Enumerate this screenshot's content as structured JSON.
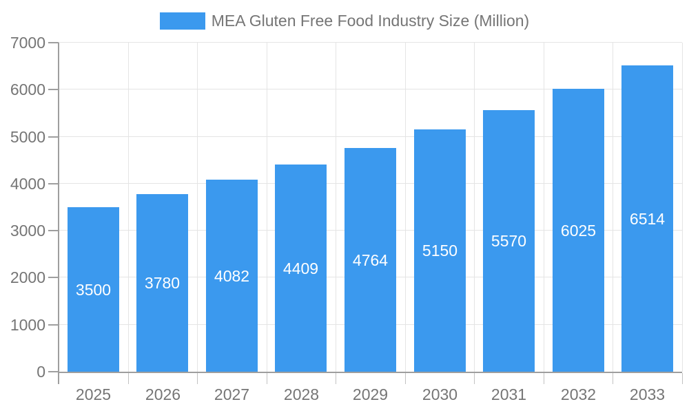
{
  "legend": {
    "label": "MEA Gluten Free Food Industry Size (Million)"
  },
  "colors": {
    "bar": "#3b99ee",
    "grid": "#e4e4e4",
    "axis": "#9e9e9e",
    "x_tick": "#c2c2c2",
    "text": "#757575",
    "value_label": "#ffffff",
    "background": "#ffffff"
  },
  "chart_data": {
    "type": "bar",
    "title": "MEA Gluten Free Food Industry Size (Million)",
    "categories": [
      "2025",
      "2026",
      "2027",
      "2028",
      "2029",
      "2030",
      "2031",
      "2032",
      "2033"
    ],
    "values": [
      3500,
      3780,
      4082,
      4409,
      4764,
      5150,
      5570,
      6025,
      6514
    ],
    "xlabel": "",
    "ylabel": "",
    "ylim": [
      0,
      7000
    ],
    "ytick_step": 1000,
    "ytick_labels": [
      "0",
      "1000",
      "2000",
      "3000",
      "4000",
      "5000",
      "6000",
      "7000"
    ],
    "grid": true,
    "legend_position": "top-center",
    "value_labels": "inside-middle-white"
  }
}
